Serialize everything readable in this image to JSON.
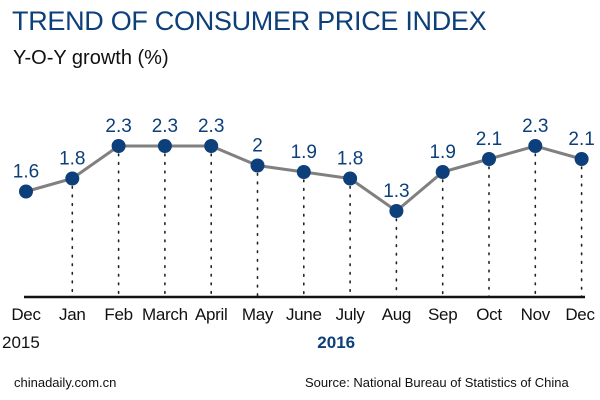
{
  "title": "TREND OF CONSUMER PRICE INDEX",
  "subtitle": "Y-O-Y growth (%)",
  "footer": {
    "credit": "chinadaily.com.cn",
    "source": "Source: National Bureau of Statistics of China"
  },
  "colors": {
    "title": "#0d3f7a",
    "marker": "#0d3f7a",
    "line": "#808080",
    "axis": "#111111"
  },
  "chart_data": {
    "type": "line",
    "title": "TREND OF CONSUMER PRICE INDEX",
    "ylabel": "Y-O-Y growth (%)",
    "categories": [
      "Dec",
      "Jan",
      "Feb",
      "March",
      "April",
      "May",
      "June",
      "July",
      "Aug",
      "Sep",
      "Oct",
      "Nov",
      "Dec"
    ],
    "year_labels": [
      {
        "text": "2015",
        "under": 0,
        "bold": false
      },
      {
        "text": "2016",
        "under": 6.7,
        "bold": true
      }
    ],
    "values": [
      1.6,
      1.8,
      2.3,
      2.3,
      2.3,
      2,
      1.9,
      1.8,
      1.3,
      1.9,
      2.1,
      2.3,
      2.1
    ],
    "data_labels": [
      "1.6",
      "1.8",
      "2.3",
      "2.3",
      "2.3",
      "2",
      "1.9",
      "1.8",
      "1.3",
      "1.9",
      "2.1",
      "2.3",
      "2.1"
    ],
    "grid": false,
    "drop_lines": "dotted"
  }
}
